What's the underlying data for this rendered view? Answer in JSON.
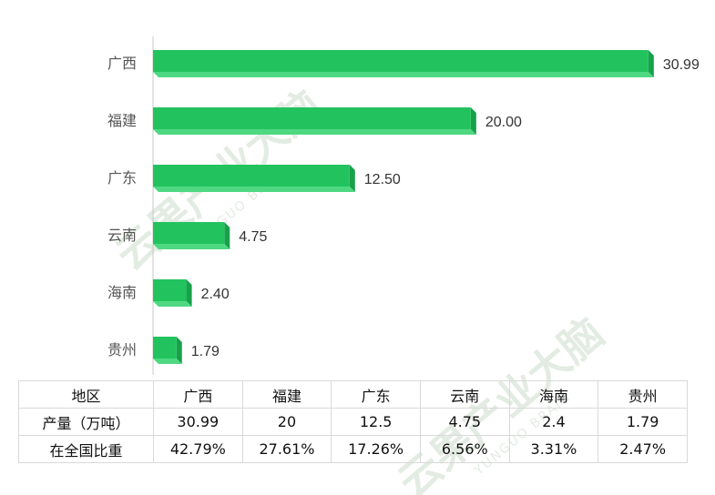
{
  "chart_data": {
    "type": "bar",
    "orientation": "horizontal",
    "categories": [
      "广西",
      "福建",
      "广东",
      "云南",
      "海南",
      "贵州"
    ],
    "values": [
      30.99,
      20.0,
      12.5,
      4.75,
      2.4,
      1.79
    ],
    "value_labels": [
      "30.99",
      "20.00",
      "12.50",
      "4.75",
      "2.40",
      "1.79"
    ],
    "xlim": [
      0,
      31
    ],
    "grid": false,
    "legend": "none"
  },
  "colors": {
    "bar_front": "#22c35e",
    "bar_top": "#4fd882",
    "bar_side": "#17a14a",
    "axis": "#c8c8c8",
    "watermark": "#e3ece3"
  },
  "table": {
    "rows": [
      [
        "地区",
        "广西",
        "福建",
        "广东",
        "云南",
        "海南",
        "贵州"
      ],
      [
        "产量（万吨）",
        "30.99",
        "20",
        "12.5",
        "4.75",
        "2.4",
        "1.79"
      ],
      [
        "在全国比重",
        "42.79%",
        "27.61%",
        "17.26%",
        "6.56%",
        "3.31%",
        "2.47%"
      ]
    ]
  },
  "watermark": {
    "text": "云果产业大脑",
    "subtext": "YUNGUO BRAIN"
  }
}
